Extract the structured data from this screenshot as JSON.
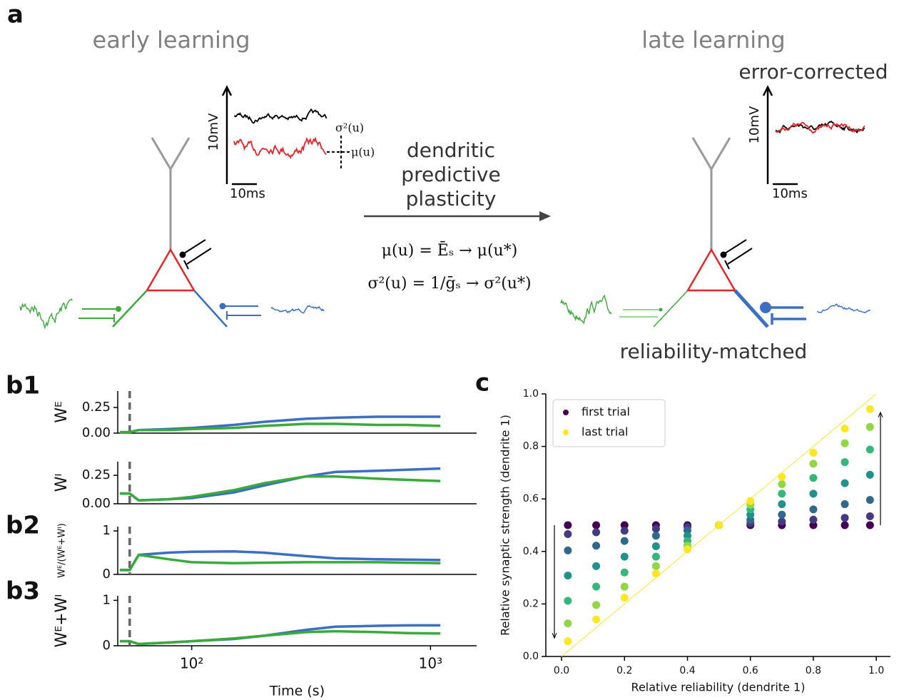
{
  "panel_labels": {
    "a": "a",
    "b1": "b1",
    "b2": "b2",
    "b3": "b3",
    "c": "c"
  },
  "panel_a": {
    "early_title": "early learning",
    "late_title": "late learning",
    "late_subtitle": "error-corrected",
    "late_footer": "reliability-matched",
    "scale_v": "10mV",
    "scale_t": "10ms",
    "sigma_label": "σ²(u)",
    "mu_label": "μ(u)",
    "arrow_text": [
      "dendritic",
      "predictive",
      "plasticity"
    ],
    "equations": [
      "μ(u) = Ēₛ → μ(u*)",
      "σ²(u) = 1/ḡₛ → σ²(u*)"
    ]
  },
  "chart_data": [
    {
      "type": "line",
      "ylabel": "Wᴱ",
      "xlog": true,
      "xlim": [
        49,
        1560
      ],
      "vline": 55,
      "ylim": [
        0,
        0.41
      ],
      "yticks": [
        {
          "value": 0,
          "label": "0.00"
        },
        {
          "value": 0.25,
          "label": "0.25"
        }
      ],
      "x": [
        50,
        55,
        60,
        80,
        100,
        150,
        200,
        300,
        400,
        600,
        800,
        1100
      ],
      "series": [
        {
          "color": "#3a6fc4",
          "values": [
            0.01,
            0.01,
            0.03,
            0.04,
            0.05,
            0.08,
            0.11,
            0.14,
            0.15,
            0.16,
            0.16,
            0.16
          ]
        },
        {
          "color": "#3aaa3a",
          "values": [
            0.01,
            0.01,
            0.03,
            0.03,
            0.04,
            0.05,
            0.07,
            0.09,
            0.09,
            0.08,
            0.08,
            0.07
          ]
        }
      ]
    },
    {
      "type": "line",
      "ylabel": "Wᴵ",
      "xlog": true,
      "xlim": [
        49,
        1560
      ],
      "vline": 55,
      "ylim": [
        0,
        0.37
      ],
      "yticks": [
        {
          "value": 0,
          "label": "0.00"
        },
        {
          "value": 0.25,
          "label": "0.25"
        }
      ],
      "x": [
        50,
        55,
        60,
        80,
        100,
        150,
        200,
        300,
        400,
        600,
        800,
        1100
      ],
      "series": [
        {
          "color": "#3a6fc4",
          "values": [
            0.09,
            0.09,
            0.03,
            0.04,
            0.05,
            0.1,
            0.16,
            0.24,
            0.28,
            0.29,
            0.3,
            0.31
          ]
        },
        {
          "color": "#3aaa3a",
          "values": [
            0.09,
            0.09,
            0.03,
            0.04,
            0.06,
            0.12,
            0.18,
            0.24,
            0.24,
            0.22,
            0.21,
            0.2
          ]
        }
      ]
    },
    {
      "type": "line",
      "ylabel": "Wᴱ/(Wᴱ+Wᴵ)",
      "xlog": true,
      "xlim": [
        49,
        1560
      ],
      "vline": 55,
      "ylim": [
        0,
        1.1
      ],
      "yticks": [
        0,
        1
      ],
      "x": [
        50,
        55,
        60,
        80,
        100,
        150,
        200,
        300,
        400,
        600,
        800,
        1100
      ],
      "series": [
        {
          "color": "#3a6fc4",
          "values": [
            0.1,
            0.1,
            0.45,
            0.5,
            0.52,
            0.53,
            0.5,
            0.42,
            0.37,
            0.35,
            0.34,
            0.33
          ]
        },
        {
          "color": "#3aaa3a",
          "values": [
            0.1,
            0.1,
            0.45,
            0.35,
            0.28,
            0.26,
            0.27,
            0.28,
            0.28,
            0.28,
            0.27,
            0.26
          ]
        }
      ]
    },
    {
      "type": "line",
      "ylabel": "Wᴱ+Wᴵ",
      "xlabel": "Time (s)",
      "xlog": true,
      "xlim": [
        49,
        1560
      ],
      "vline": 55,
      "ylim": [
        0,
        1.1
      ],
      "yticks": [
        0,
        1
      ],
      "xticks": [
        {
          "value": 100,
          "label": "10²"
        },
        {
          "value": 1000,
          "label": "10³"
        }
      ],
      "x": [
        50,
        55,
        60,
        80,
        100,
        150,
        200,
        300,
        400,
        600,
        800,
        1100
      ],
      "series": [
        {
          "color": "#3a6fc4",
          "values": [
            0.1,
            0.1,
            0.04,
            0.07,
            0.1,
            0.15,
            0.22,
            0.35,
            0.42,
            0.44,
            0.45,
            0.45
          ]
        },
        {
          "color": "#3aaa3a",
          "values": [
            0.1,
            0.1,
            0.04,
            0.07,
            0.1,
            0.16,
            0.22,
            0.3,
            0.32,
            0.3,
            0.28,
            0.27
          ]
        }
      ]
    },
    {
      "type": "scatter",
      "xlabel": "Relative reliability (dendrite 1)",
      "ylabel": "Relative synaptic strength (dendrite 1)",
      "xlim": [
        -0.05,
        1.045
      ],
      "ylim": [
        0,
        1
      ],
      "xticks": [
        {
          "value": 0,
          "label": "0.0"
        },
        {
          "value": 0.2,
          "label": "0.2"
        },
        {
          "value": 0.4,
          "label": "0.4"
        },
        {
          "value": 0.6,
          "label": "0.6"
        },
        {
          "value": 0.8,
          "label": "0.8"
        },
        {
          "value": 1,
          "label": "1.0"
        }
      ],
      "yticks": [
        {
          "value": 0,
          "label": "0.0"
        },
        {
          "value": 0.2,
          "label": "0.2"
        },
        {
          "value": 0.4,
          "label": "0.4"
        },
        {
          "value": 0.6,
          "label": "0.6"
        },
        {
          "value": 0.8,
          "label": "0.8"
        },
        {
          "value": 1,
          "label": "1.0"
        }
      ],
      "legend": "upper left",
      "x": [
        0.02,
        0.11,
        0.2,
        0.3,
        0.4,
        0.5,
        0.6,
        0.7,
        0.8,
        0.9,
        0.98
      ],
      "series": [
        {
          "name": "first trial",
          "color": "#440154",
          "values": [
            0.5,
            0.5,
            0.5,
            0.5,
            0.5,
            0.5,
            0.5,
            0.5,
            0.5,
            0.5,
            0.5
          ]
        },
        {
          "color": "#443983",
          "values": [
            0.466,
            0.473,
            0.479,
            0.486,
            0.493,
            0.5,
            0.507,
            0.514,
            0.521,
            0.528,
            0.534
          ]
        },
        {
          "color": "#31688e",
          "values": [
            0.404,
            0.422,
            0.44,
            0.46,
            0.48,
            0.5,
            0.52,
            0.54,
            0.56,
            0.58,
            0.596
          ]
        },
        {
          "color": "#21918c",
          "values": [
            0.308,
            0.344,
            0.38,
            0.42,
            0.46,
            0.5,
            0.54,
            0.58,
            0.62,
            0.66,
            0.692
          ]
        },
        {
          "color": "#35b779",
          "values": [
            0.212,
            0.266,
            0.32,
            0.38,
            0.44,
            0.5,
            0.56,
            0.62,
            0.68,
            0.74,
            0.788
          ]
        },
        {
          "color": "#90d743",
          "values": [
            0.126,
            0.196,
            0.266,
            0.344,
            0.422,
            0.5,
            0.578,
            0.656,
            0.734,
            0.812,
            0.874
          ]
        },
        {
          "name": "last trial",
          "color": "#fde725",
          "values": [
            0.058,
            0.141,
            0.224,
            0.316,
            0.408,
            0.5,
            0.592,
            0.684,
            0.776,
            0.868,
            0.942
          ]
        }
      ]
    }
  ]
}
